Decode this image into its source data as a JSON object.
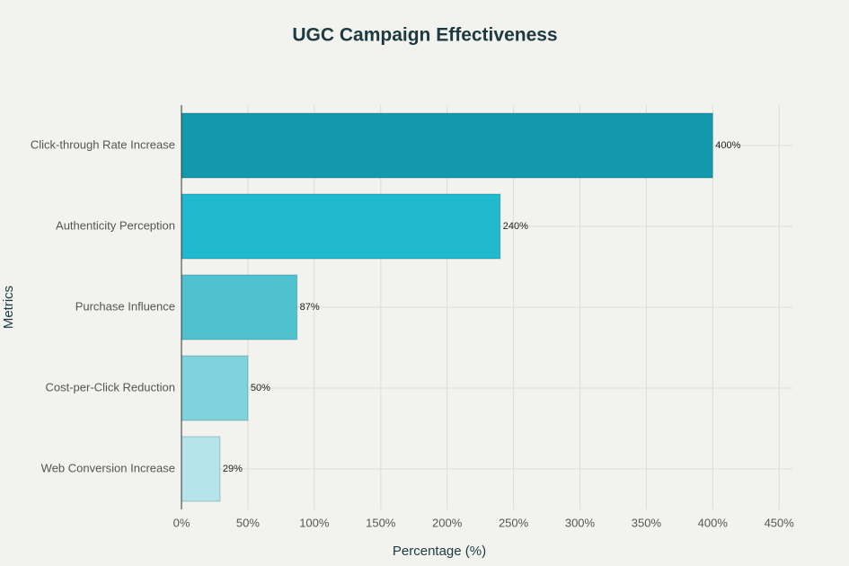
{
  "chart_data": {
    "type": "bar",
    "orientation": "horizontal",
    "title": "UGC Campaign Effectiveness",
    "x_label": "Percentage (%)",
    "y_label": "Metrics",
    "categories": [
      "Click-through Rate Increase",
      "Authenticity Perception",
      "Purchase Influence",
      "Cost-per-Click Reduction",
      "Web Conversion Increase"
    ],
    "values": [
      400,
      240,
      87,
      50,
      29
    ],
    "value_labels": [
      "400%",
      "240%",
      "87%",
      "50%",
      "29%"
    ],
    "colors": [
      "#1299ab",
      "#21b9cd",
      "#4fc2d0",
      "#7ed3dc",
      "#b5e4ea"
    ],
    "xlim": [
      0,
      460
    ],
    "xticks": [
      {
        "value": 0,
        "label": "0%"
      },
      {
        "value": 50,
        "label": "50%"
      },
      {
        "value": 100,
        "label": "100%"
      },
      {
        "value": 150,
        "label": "150%"
      },
      {
        "value": 200,
        "label": "200%"
      },
      {
        "value": 250,
        "label": "250%"
      },
      {
        "value": 300,
        "label": "300%"
      },
      {
        "value": 350,
        "label": "350%"
      },
      {
        "value": 400,
        "label": "400%"
      },
      {
        "value": 450,
        "label": "450%"
      }
    ],
    "grid": true
  }
}
